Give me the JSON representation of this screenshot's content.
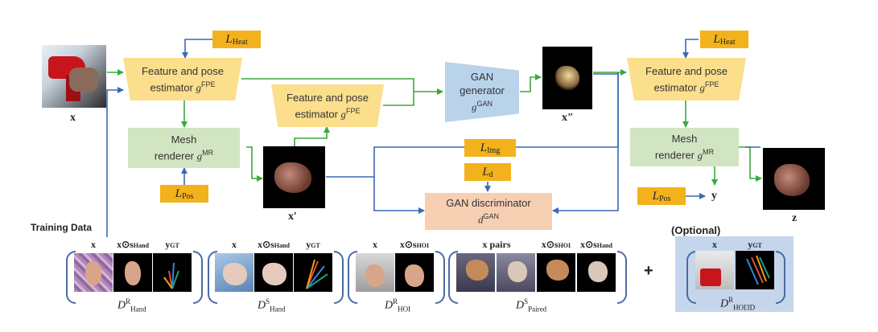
{
  "blocks": {
    "fpe_main_line1": "Feature and pose",
    "fpe_main_line2": "estimator",
    "fpe_mid_line1": "Feature and pose",
    "fpe_mid_line2": "estimator",
    "fpe_right_line1": "Feature and pose",
    "fpe_right_line2": "estimator",
    "fpe_symbol": "g",
    "fpe_sup": "FPE",
    "mesh_left_line1": "Mesh",
    "mesh_left_line2": "renderer",
    "mesh_right_line1": "Mesh",
    "mesh_right_line2": "renderer",
    "mesh_symbol": "g",
    "mesh_sup": "MR",
    "gan_gen_line1": "GAN",
    "gan_gen_line2": "generator",
    "gan_gen_symbol": "g",
    "gan_gen_sup": "GAN",
    "gan_disc_line1": "GAN discriminator",
    "gan_disc_symbol": "d",
    "gan_disc_sup": "GAN"
  },
  "losses": {
    "heat_left": {
      "L": "L",
      "sub": "Heat"
    },
    "heat_right": {
      "L": "L",
      "sub": "Heat"
    },
    "pos_left": {
      "L": "L",
      "sub": "Pos"
    },
    "pos_right": {
      "L": "L",
      "sub": "Pos"
    },
    "img": {
      "L": "L",
      "sub": "Img"
    },
    "d": {
      "L": "L",
      "sub": "d"
    }
  },
  "variables": {
    "x": "x",
    "x_prime": "x′",
    "x_double_prime": "x″",
    "y": "y",
    "z": "z"
  },
  "training": {
    "title": "Training Data",
    "optional": "(Optional)",
    "plus": "+",
    "groups": [
      {
        "id": "hand_real",
        "sym": "D",
        "sup": "R",
        "sub": "Hand",
        "cols": [
          {
            "main": "x",
            "sub": ""
          },
          {
            "main": "x⊙s",
            "sub": "Hand"
          },
          {
            "main": "y",
            "sub": "GT"
          }
        ]
      },
      {
        "id": "hand_syn",
        "sym": "D",
        "sup": "S",
        "sub": "Hand",
        "cols": [
          {
            "main": "x",
            "sub": ""
          },
          {
            "main": "x⊙s",
            "sub": "Hand"
          },
          {
            "main": "y",
            "sub": "GT"
          }
        ]
      },
      {
        "id": "hoi_real",
        "sym": "D",
        "sup": "R",
        "sub": "HOI",
        "cols": [
          {
            "main": "x",
            "sub": ""
          },
          {
            "main": "x⊙s",
            "sub": "HOI"
          }
        ]
      },
      {
        "id": "paired_syn",
        "sym": "D",
        "sup": "S",
        "sub": "Paired",
        "cols": [
          {
            "main": "x pairs",
            "sub": ""
          },
          {
            "main": "x⊙s",
            "sub": "HOI"
          },
          {
            "main": "x⊙s",
            "sub": "Hand"
          }
        ]
      },
      {
        "id": "hoi3d_real",
        "sym": "D",
        "sup": "R",
        "sub": "HOI3D",
        "cols": [
          {
            "main": "x",
            "sub": ""
          },
          {
            "main": "y",
            "sub": "GT"
          }
        ]
      }
    ]
  },
  "colors": {
    "green_arrow": "#3aa83a",
    "blue_arrow": "#3c68b4",
    "fpe": "#fbdf8c",
    "mesh": "#d2e5c2",
    "loss": "#f3b21b",
    "disc": "#f7cfb3",
    "gen": "#b9d3eb"
  }
}
